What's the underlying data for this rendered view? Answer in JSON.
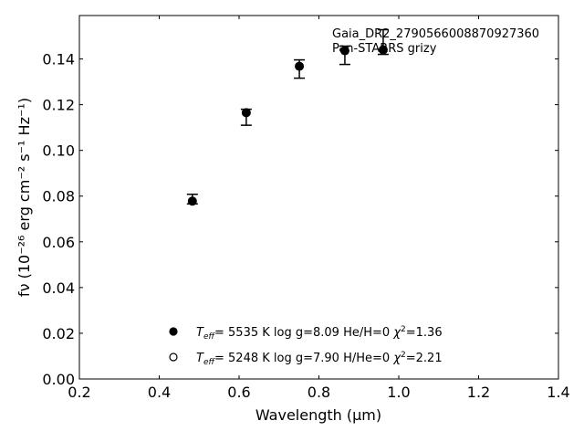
{
  "chart_data": {
    "type": "scatter",
    "title": "",
    "xlabel": "Wavelength (μm)",
    "ylabel": "fν (10⁻²⁶ erg cm⁻² s⁻¹ Hz⁻¹)",
    "xlim": [
      0.2,
      1.4
    ],
    "ylim": [
      0.0,
      0.159
    ],
    "xticks": [
      "0.2",
      "0.4",
      "0.6",
      "0.8",
      "1.0",
      "1.2",
      "1.4"
    ],
    "yticks": [
      "0.00",
      "0.02",
      "0.04",
      "0.06",
      "0.08",
      "0.10",
      "0.12",
      "0.14"
    ],
    "grid": false,
    "annotation": [
      "Gaia_DR2_2790566008870927360",
      "Pan-STARRS grizy"
    ],
    "points": [
      {
        "x": 0.483,
        "y": 0.0778,
        "err_low": 0.0766,
        "err_high": 0.0808
      },
      {
        "x": 0.618,
        "y": 0.1165,
        "err_low": 0.111,
        "err_high": 0.118
      },
      {
        "x": 0.751,
        "y": 0.1368,
        "err_low": 0.1316,
        "err_high": 0.1396
      },
      {
        "x": 0.865,
        "y": 0.1436,
        "err_low": 0.1376,
        "err_high": 0.1456
      },
      {
        "x": 0.961,
        "y": 0.144,
        "err_low": 0.142,
        "err_high": 0.1528
      }
    ],
    "legend_placement": "bottom-center",
    "legend": [
      {
        "marker": "filled-circle",
        "teff": "5535 K",
        "logg": "log g=8.09",
        "comp": "He/H=0",
        "chi2": "=1.36"
      },
      {
        "marker": "open-circle",
        "teff": "5248 K",
        "logg": "log g=7.90",
        "comp": "H/He=0",
        "chi2": "=2.21"
      }
    ]
  }
}
